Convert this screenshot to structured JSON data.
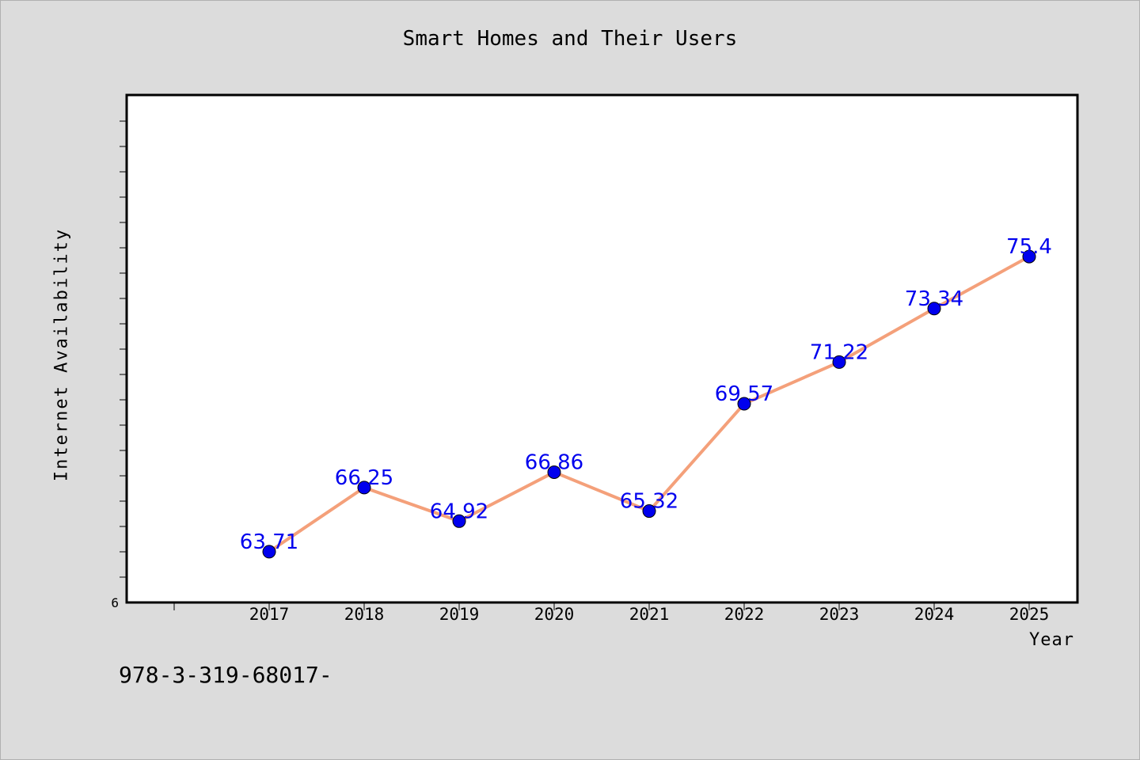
{
  "chart_data": {
    "type": "line",
    "title": "Smart Homes and Their Users",
    "xlabel": "Year",
    "ylabel": "Internet Availability",
    "categories": [
      "2017",
      "2018",
      "2019",
      "2020",
      "2021",
      "2022",
      "2023",
      "2024",
      "2025"
    ],
    "series": [
      {
        "values": [
          63.71,
          66.25,
          64.92,
          66.86,
          65.32,
          69.57,
          71.22,
          73.34,
          75.4
        ],
        "data_labels": [
          "63.71",
          "66.25",
          "64.92",
          "66.86",
          "65.32",
          "69.57",
          "71.22",
          "73.34",
          "75.4"
        ],
        "line_color": "#f4a07a",
        "marker_color": "#0000ee",
        "label_color": "#0000ee"
      }
    ],
    "ylim": [
      61.7,
      81.8
    ],
    "y_tick_labels": [
      "6"
    ],
    "grid": false,
    "legend": "none"
  },
  "footnote": "978-3-319-68017-",
  "colors": {
    "background": "#dcdcdc",
    "plot_background": "#ffffff",
    "axis": "#000000"
  }
}
